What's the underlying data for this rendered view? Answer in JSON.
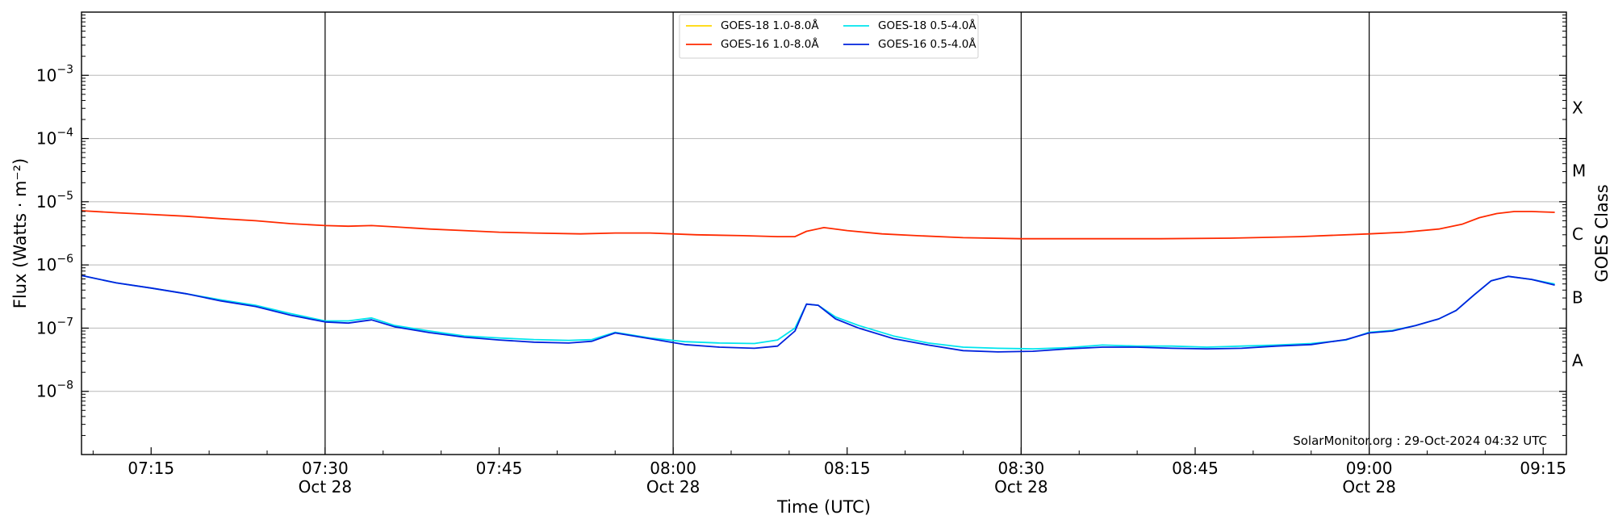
{
  "chart_data": {
    "type": "line",
    "y_scale": "log",
    "ylim": [
      1e-09,
      0.01
    ],
    "xlim": [
      "2024-10-28T07:09:00",
      "2024-10-28T09:17:00"
    ],
    "xlabel": "Time (UTC)",
    "ylabel": "Flux (Watts · m⁻²)",
    "ylabel_right": "GOES Class",
    "grid": "horizontal",
    "legend_position": "top-center",
    "x_ticks": [
      {
        "value": "2024-10-28T07:15:00",
        "label": "07:15",
        "sublabel": ""
      },
      {
        "value": "2024-10-28T07:30:00",
        "label": "07:30",
        "sublabel": "Oct 28"
      },
      {
        "value": "2024-10-28T07:45:00",
        "label": "07:45",
        "sublabel": ""
      },
      {
        "value": "2024-10-28T08:00:00",
        "label": "08:00",
        "sublabel": "Oct 28"
      },
      {
        "value": "2024-10-28T08:15:00",
        "label": "08:15",
        "sublabel": ""
      },
      {
        "value": "2024-10-28T08:30:00",
        "label": "08:30",
        "sublabel": "Oct 28"
      },
      {
        "value": "2024-10-28T08:45:00",
        "label": "08:45",
        "sublabel": ""
      },
      {
        "value": "2024-10-28T09:00:00",
        "label": "09:00",
        "sublabel": "Oct 28"
      },
      {
        "value": "2024-10-28T09:15:00",
        "label": "09:15",
        "sublabel": ""
      }
    ],
    "y_ticks": [
      {
        "value": 1e-08,
        "base": "10",
        "exp": "−8"
      },
      {
        "value": 1e-07,
        "base": "10",
        "exp": "−7"
      },
      {
        "value": 1e-06,
        "base": "10",
        "exp": "−6"
      },
      {
        "value": 1e-05,
        "base": "10",
        "exp": "−5"
      },
      {
        "value": 0.0001,
        "base": "10",
        "exp": "−4"
      },
      {
        "value": 0.001,
        "base": "10",
        "exp": "−3"
      }
    ],
    "goes_classes": [
      {
        "label": "A",
        "value": 3.16e-08
      },
      {
        "label": "B",
        "value": 3.16e-07
      },
      {
        "label": "C",
        "value": 3.16e-06
      },
      {
        "label": "M",
        "value": 3.16e-05
      },
      {
        "label": "X",
        "value": 0.000316
      }
    ],
    "vertical_lines": [
      "2024-10-28T07:30:00",
      "2024-10-28T08:00:00",
      "2024-10-28T08:30:00",
      "2024-10-28T09:00:00"
    ],
    "annotation": "SolarMonitor.org : 29-Oct-2024 04:32 UTC",
    "series": [
      {
        "name": "GOES-18 1.0-8.0Å",
        "color": "#ffd700",
        "x": [],
        "y": []
      },
      {
        "name": "GOES-16 1.0-8.0Å",
        "color": "#ff2a00",
        "x": [
          "2024-10-28T07:09:00",
          "2024-10-28T07:12:00",
          "2024-10-28T07:15:00",
          "2024-10-28T07:18:00",
          "2024-10-28T07:21:00",
          "2024-10-28T07:24:00",
          "2024-10-28T07:27:00",
          "2024-10-28T07:30:00",
          "2024-10-28T07:32:00",
          "2024-10-28T07:34:00",
          "2024-10-28T07:36:00",
          "2024-10-28T07:39:00",
          "2024-10-28T07:42:00",
          "2024-10-28T07:45:00",
          "2024-10-28T07:48:00",
          "2024-10-28T07:52:00",
          "2024-10-28T07:55:00",
          "2024-10-28T07:58:00",
          "2024-10-28T08:02:00",
          "2024-10-28T08:06:00",
          "2024-10-28T08:09:00",
          "2024-10-28T08:10:30",
          "2024-10-28T08:11:30",
          "2024-10-28T08:13:00",
          "2024-10-28T08:15:00",
          "2024-10-28T08:18:00",
          "2024-10-28T08:21:00",
          "2024-10-28T08:25:00",
          "2024-10-28T08:30:00",
          "2024-10-28T08:36:00",
          "2024-10-28T08:42:00",
          "2024-10-28T08:48:00",
          "2024-10-28T08:54:00",
          "2024-10-28T09:00:00",
          "2024-10-28T09:03:00",
          "2024-10-28T09:06:00",
          "2024-10-28T09:08:00",
          "2024-10-28T09:09:30",
          "2024-10-28T09:11:00",
          "2024-10-28T09:12:30",
          "2024-10-28T09:14:00",
          "2024-10-28T09:16:00"
        ],
        "y": [
          7.2e-06,
          6.7e-06,
          6.3e-06,
          5.9e-06,
          5.4e-06,
          5e-06,
          4.5e-06,
          4.2e-06,
          4.1e-06,
          4.2e-06,
          4e-06,
          3.7e-06,
          3.5e-06,
          3.3e-06,
          3.2e-06,
          3.1e-06,
          3.2e-06,
          3.2e-06,
          3e-06,
          2.9e-06,
          2.8e-06,
          2.8e-06,
          3.4e-06,
          3.9e-06,
          3.5e-06,
          3.1e-06,
          2.9e-06,
          2.7e-06,
          2.6e-06,
          2.6e-06,
          2.6e-06,
          2.65e-06,
          2.8e-06,
          3.1e-06,
          3.3e-06,
          3.7e-06,
          4.4e-06,
          5.6e-06,
          6.5e-06,
          7e-06,
          7e-06,
          6.8e-06
        ]
      },
      {
        "name": "GOES-18 0.5-4.0Å",
        "color": "#00e5ee",
        "x": [
          "2024-10-28T07:09:00",
          "2024-10-28T07:12:00",
          "2024-10-28T07:15:00",
          "2024-10-28T07:18:00",
          "2024-10-28T07:21:00",
          "2024-10-28T07:24:00",
          "2024-10-28T07:27:00",
          "2024-10-28T07:30:00",
          "2024-10-28T07:32:00",
          "2024-10-28T07:34:00",
          "2024-10-28T07:36:00",
          "2024-10-28T07:39:00",
          "2024-10-28T07:42:00",
          "2024-10-28T07:45:00",
          "2024-10-28T07:48:00",
          "2024-10-28T07:51:00",
          "2024-10-28T07:53:00",
          "2024-10-28T07:55:00",
          "2024-10-28T07:58:00",
          "2024-10-28T08:01:00",
          "2024-10-28T08:04:00",
          "2024-10-28T08:07:00",
          "2024-10-28T08:09:00",
          "2024-10-28T08:10:30",
          "2024-10-28T08:11:30",
          "2024-10-28T08:12:30",
          "2024-10-28T08:14:00",
          "2024-10-28T08:16:00",
          "2024-10-28T08:19:00",
          "2024-10-28T08:22:00",
          "2024-10-28T08:25:00",
          "2024-10-28T08:28:00",
          "2024-10-28T08:31:00",
          "2024-10-28T08:34:00",
          "2024-10-28T08:37:00",
          "2024-10-28T08:40:00",
          "2024-10-28T08:43:00",
          "2024-10-28T08:46:00",
          "2024-10-28T08:49:00",
          "2024-10-28T08:52:00",
          "2024-10-28T08:55:00",
          "2024-10-28T08:58:00",
          "2024-10-28T09:00:00",
          "2024-10-28T09:02:00",
          "2024-10-28T09:04:00",
          "2024-10-28T09:06:00",
          "2024-10-28T09:07:30",
          "2024-10-28T09:09:00",
          "2024-10-28T09:10:30",
          "2024-10-28T09:12:00",
          "2024-10-28T09:14:00",
          "2024-10-28T09:16:00"
        ],
        "y": [
          6.8e-07,
          5.2e-07,
          4.3e-07,
          3.5e-07,
          2.8e-07,
          2.3e-07,
          1.7e-07,
          1.3e-07,
          1.3e-07,
          1.45e-07,
          1.1e-07,
          9e-08,
          7.5e-08,
          7e-08,
          6.6e-08,
          6.4e-08,
          6.6e-08,
          8.6e-08,
          7e-08,
          6.1e-08,
          5.8e-08,
          5.7e-08,
          6.5e-08,
          1e-07,
          2.4e-07,
          2.3e-07,
          1.5e-07,
          1.1e-07,
          7.5e-08,
          5.8e-08,
          5e-08,
          4.8e-08,
          4.7e-08,
          4.9e-08,
          5.4e-08,
          5.2e-08,
          5.2e-08,
          5e-08,
          5.2e-08,
          5.4e-08,
          5.7e-08,
          6.5e-08,
          8.6e-08,
          9.2e-08,
          1.1e-07,
          1.4e-07,
          1.9e-07,
          3.3e-07,
          5.6e-07,
          6.6e-07,
          5.9e-07,
          5e-07
        ]
      },
      {
        "name": "GOES-16 0.5-4.0Å",
        "color": "#0022dd",
        "x": [
          "2024-10-28T07:09:00",
          "2024-10-28T07:12:00",
          "2024-10-28T07:15:00",
          "2024-10-28T07:18:00",
          "2024-10-28T07:21:00",
          "2024-10-28T07:24:00",
          "2024-10-28T07:27:00",
          "2024-10-28T07:30:00",
          "2024-10-28T07:32:00",
          "2024-10-28T07:34:00",
          "2024-10-28T07:36:00",
          "2024-10-28T07:39:00",
          "2024-10-28T07:42:00",
          "2024-10-28T07:45:00",
          "2024-10-28T07:48:00",
          "2024-10-28T07:51:00",
          "2024-10-28T07:53:00",
          "2024-10-28T07:55:00",
          "2024-10-28T07:58:00",
          "2024-10-28T08:01:00",
          "2024-10-28T08:04:00",
          "2024-10-28T08:07:00",
          "2024-10-28T08:09:00",
          "2024-10-28T08:10:30",
          "2024-10-28T08:11:30",
          "2024-10-28T08:12:30",
          "2024-10-28T08:14:00",
          "2024-10-28T08:16:00",
          "2024-10-28T08:19:00",
          "2024-10-28T08:22:00",
          "2024-10-28T08:25:00",
          "2024-10-28T08:28:00",
          "2024-10-28T08:31:00",
          "2024-10-28T08:34:00",
          "2024-10-28T08:37:00",
          "2024-10-28T08:40:00",
          "2024-10-28T08:43:00",
          "2024-10-28T08:46:00",
          "2024-10-28T08:49:00",
          "2024-10-28T08:52:00",
          "2024-10-28T08:55:00",
          "2024-10-28T08:58:00",
          "2024-10-28T09:00:00",
          "2024-10-28T09:02:00",
          "2024-10-28T09:04:00",
          "2024-10-28T09:06:00",
          "2024-10-28T09:07:30",
          "2024-10-28T09:09:00",
          "2024-10-28T09:10:30",
          "2024-10-28T09:12:00",
          "2024-10-28T09:14:00",
          "2024-10-28T09:16:00"
        ],
        "y": [
          6.8e-07,
          5.2e-07,
          4.3e-07,
          3.5e-07,
          2.7e-07,
          2.2e-07,
          1.6e-07,
          1.25e-07,
          1.2e-07,
          1.35e-07,
          1.05e-07,
          8.5e-08,
          7.2e-08,
          6.5e-08,
          6e-08,
          5.8e-08,
          6.2e-08,
          8.4e-08,
          6.8e-08,
          5.5e-08,
          5e-08,
          4.8e-08,
          5.2e-08,
          9e-08,
          2.4e-07,
          2.3e-07,
          1.4e-07,
          1e-07,
          6.8e-08,
          5.4e-08,
          4.4e-08,
          4.2e-08,
          4.3e-08,
          4.7e-08,
          5e-08,
          5e-08,
          4.8e-08,
          4.7e-08,
          4.8e-08,
          5.2e-08,
          5.5e-08,
          6.6e-08,
          8.4e-08,
          9e-08,
          1.1e-07,
          1.4e-07,
          1.9e-07,
          3.3e-07,
          5.6e-07,
          6.6e-07,
          5.9e-07,
          4.8e-07
        ]
      }
    ]
  }
}
